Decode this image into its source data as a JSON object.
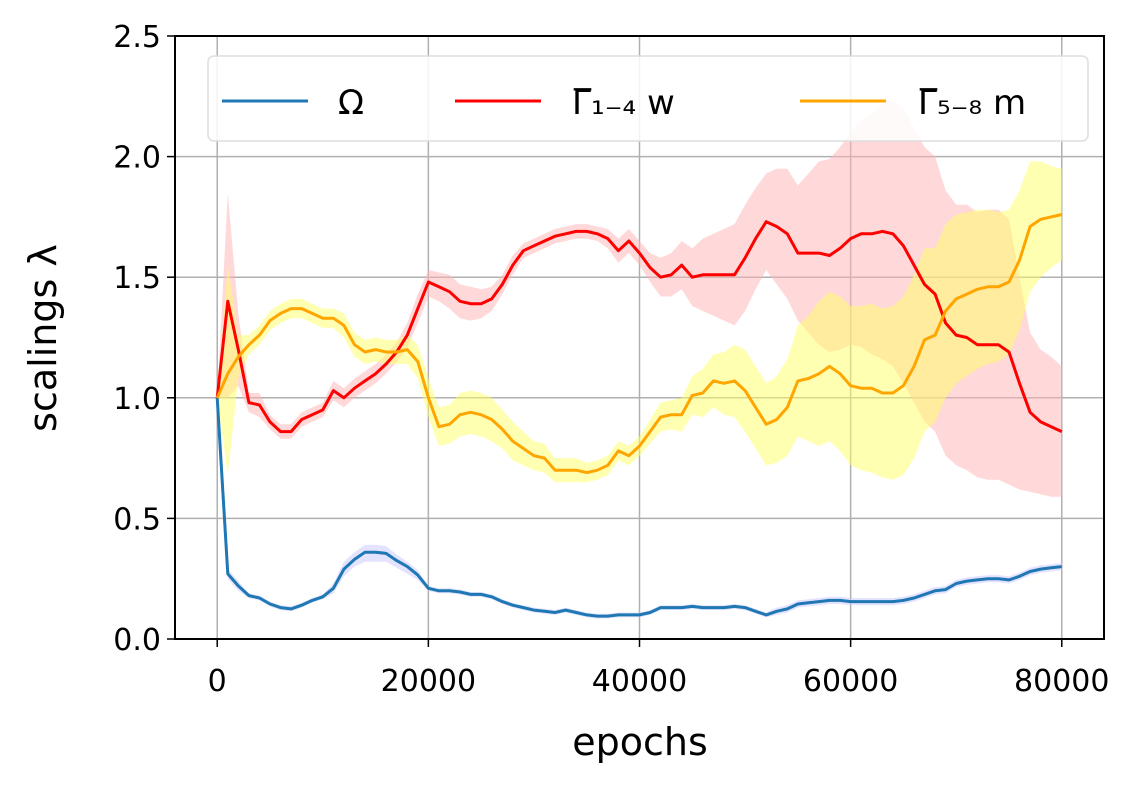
{
  "chart_data": {
    "type": "line",
    "xlabel": "epochs",
    "ylabel": "scalings λ",
    "xlim": [
      -4000,
      84000
    ],
    "ylim": [
      0,
      2.5
    ],
    "xticks": [
      0,
      20000,
      40000,
      60000,
      80000
    ],
    "xtick_labels": [
      "0",
      "20000",
      "40000",
      "60000",
      "80000"
    ],
    "yticks": [
      0,
      0.5,
      1,
      1.5,
      2,
      2.5
    ],
    "ytick_labels": [
      "0.0",
      "0.5",
      "1.0",
      "1.5",
      "2.0",
      "2.5"
    ],
    "grid": true,
    "legend_position": "top",
    "series": [
      {
        "name": "Ω",
        "color": "#1f77b4",
        "band_color": "#c8c8ff",
        "x": [
          0,
          1000,
          2000,
          3000,
          4000,
          5000,
          6000,
          7000,
          8000,
          9000,
          10000,
          11000,
          12000,
          13000,
          14000,
          15000,
          16000,
          17000,
          18000,
          19000,
          20000,
          21000,
          22000,
          23000,
          24000,
          25000,
          26000,
          27000,
          28000,
          29000,
          30000,
          31000,
          32000,
          33000,
          34000,
          35000,
          36000,
          37000,
          38000,
          39000,
          40000,
          41000,
          42000,
          43000,
          44000,
          45000,
          46000,
          47000,
          48000,
          49000,
          50000,
          51000,
          52000,
          53000,
          54000,
          55000,
          56000,
          57000,
          58000,
          59000,
          60000,
          61000,
          62000,
          63000,
          64000,
          65000,
          66000,
          67000,
          68000,
          69000,
          70000,
          71000,
          72000,
          73000,
          74000,
          75000,
          76000,
          77000,
          78000,
          79000,
          80000
        ],
        "y": [
          1.0,
          0.27,
          0.22,
          0.18,
          0.17,
          0.145,
          0.13,
          0.125,
          0.14,
          0.16,
          0.175,
          0.21,
          0.29,
          0.33,
          0.36,
          0.36,
          0.355,
          0.325,
          0.3,
          0.265,
          0.21,
          0.2,
          0.2,
          0.195,
          0.185,
          0.185,
          0.175,
          0.155,
          0.14,
          0.13,
          0.12,
          0.115,
          0.11,
          0.12,
          0.11,
          0.1,
          0.095,
          0.095,
          0.1,
          0.1,
          0.1,
          0.11,
          0.13,
          0.13,
          0.13,
          0.135,
          0.13,
          0.13,
          0.13,
          0.135,
          0.13,
          0.115,
          0.1,
          0.115,
          0.125,
          0.145,
          0.15,
          0.155,
          0.16,
          0.16,
          0.155,
          0.155,
          0.155,
          0.155,
          0.155,
          0.16,
          0.17,
          0.185,
          0.2,
          0.205,
          0.23,
          0.24,
          0.245,
          0.25,
          0.25,
          0.245,
          0.26,
          0.28,
          0.29,
          0.295,
          0.3
        ],
        "lower": [
          1.0,
          0.25,
          0.2,
          0.17,
          0.16,
          0.135,
          0.12,
          0.115,
          0.13,
          0.15,
          0.165,
          0.19,
          0.26,
          0.3,
          0.32,
          0.32,
          0.32,
          0.295,
          0.27,
          0.245,
          0.2,
          0.19,
          0.19,
          0.185,
          0.175,
          0.175,
          0.165,
          0.145,
          0.13,
          0.12,
          0.11,
          0.105,
          0.1,
          0.11,
          0.1,
          0.09,
          0.085,
          0.085,
          0.09,
          0.09,
          0.09,
          0.1,
          0.12,
          0.12,
          0.12,
          0.125,
          0.12,
          0.12,
          0.12,
          0.125,
          0.12,
          0.105,
          0.09,
          0.1,
          0.11,
          0.13,
          0.135,
          0.14,
          0.145,
          0.145,
          0.14,
          0.14,
          0.14,
          0.14,
          0.14,
          0.145,
          0.155,
          0.17,
          0.185,
          0.19,
          0.215,
          0.225,
          0.23,
          0.235,
          0.235,
          0.23,
          0.245,
          0.265,
          0.275,
          0.28,
          0.285
        ],
        "upper": [
          1.0,
          0.29,
          0.24,
          0.19,
          0.18,
          0.155,
          0.14,
          0.135,
          0.15,
          0.17,
          0.185,
          0.23,
          0.32,
          0.36,
          0.39,
          0.39,
          0.385,
          0.35,
          0.32,
          0.285,
          0.22,
          0.21,
          0.21,
          0.205,
          0.195,
          0.195,
          0.185,
          0.165,
          0.15,
          0.14,
          0.13,
          0.125,
          0.12,
          0.13,
          0.12,
          0.11,
          0.105,
          0.105,
          0.11,
          0.11,
          0.11,
          0.12,
          0.14,
          0.14,
          0.14,
          0.145,
          0.14,
          0.14,
          0.14,
          0.145,
          0.14,
          0.125,
          0.11,
          0.13,
          0.14,
          0.16,
          0.165,
          0.17,
          0.175,
          0.175,
          0.17,
          0.17,
          0.17,
          0.17,
          0.17,
          0.175,
          0.185,
          0.2,
          0.215,
          0.22,
          0.245,
          0.255,
          0.26,
          0.265,
          0.265,
          0.26,
          0.275,
          0.295,
          0.305,
          0.31,
          0.315
        ]
      },
      {
        "name": "Γ̅₁₋₄ w",
        "color": "#ff0000",
        "band_color": "#ffb3b3",
        "x": [
          0,
          1000,
          2000,
          3000,
          4000,
          5000,
          6000,
          7000,
          8000,
          9000,
          10000,
          11000,
          12000,
          13000,
          14000,
          15000,
          16000,
          17000,
          18000,
          19000,
          20000,
          21000,
          22000,
          23000,
          24000,
          25000,
          26000,
          27000,
          28000,
          29000,
          30000,
          31000,
          32000,
          33000,
          34000,
          35000,
          36000,
          37000,
          38000,
          39000,
          40000,
          41000,
          42000,
          43000,
          44000,
          45000,
          46000,
          47000,
          48000,
          49000,
          50000,
          51000,
          52000,
          53000,
          54000,
          55000,
          56000,
          57000,
          58000,
          59000,
          60000,
          61000,
          62000,
          63000,
          64000,
          65000,
          66000,
          67000,
          68000,
          69000,
          70000,
          71000,
          72000,
          73000,
          74000,
          75000,
          76000,
          77000,
          78000,
          79000,
          80000
        ],
        "y": [
          1.0,
          1.4,
          1.2,
          0.98,
          0.97,
          0.9,
          0.86,
          0.86,
          0.91,
          0.93,
          0.95,
          1.03,
          1.0,
          1.04,
          1.07,
          1.1,
          1.14,
          1.19,
          1.26,
          1.37,
          1.48,
          1.46,
          1.44,
          1.4,
          1.39,
          1.39,
          1.41,
          1.47,
          1.55,
          1.61,
          1.63,
          1.65,
          1.67,
          1.68,
          1.69,
          1.69,
          1.68,
          1.66,
          1.61,
          1.65,
          1.6,
          1.54,
          1.5,
          1.51,
          1.55,
          1.5,
          1.51,
          1.51,
          1.51,
          1.51,
          1.58,
          1.66,
          1.73,
          1.71,
          1.68,
          1.6,
          1.6,
          1.6,
          1.59,
          1.62,
          1.66,
          1.68,
          1.68,
          1.69,
          1.68,
          1.63,
          1.55,
          1.47,
          1.43,
          1.31,
          1.26,
          1.25,
          1.22,
          1.22,
          1.22,
          1.19,
          1.06,
          0.94,
          0.9,
          0.88,
          0.86
        ],
        "lower": [
          1.0,
          1.0,
          1.05,
          0.94,
          0.92,
          0.87,
          0.83,
          0.83,
          0.88,
          0.9,
          0.92,
          0.99,
          0.96,
          1.0,
          1.03,
          1.06,
          1.1,
          1.15,
          1.21,
          1.31,
          1.42,
          1.4,
          1.37,
          1.33,
          1.32,
          1.33,
          1.36,
          1.43,
          1.51,
          1.58,
          1.6,
          1.62,
          1.64,
          1.65,
          1.66,
          1.66,
          1.65,
          1.62,
          1.56,
          1.6,
          1.55,
          1.48,
          1.42,
          1.42,
          1.45,
          1.38,
          1.36,
          1.34,
          1.32,
          1.3,
          1.36,
          1.45,
          1.53,
          1.47,
          1.41,
          1.32,
          1.27,
          1.22,
          1.19,
          1.2,
          1.22,
          1.21,
          1.18,
          1.16,
          1.13,
          1.06,
          0.98,
          0.9,
          0.86,
          0.76,
          0.72,
          0.7,
          0.67,
          0.66,
          0.66,
          0.64,
          0.62,
          0.61,
          0.6,
          0.59,
          0.59
        ],
        "upper": [
          1.0,
          1.85,
          1.35,
          1.02,
          1.02,
          0.93,
          0.89,
          0.89,
          0.94,
          0.96,
          0.98,
          1.07,
          1.04,
          1.08,
          1.11,
          1.14,
          1.18,
          1.23,
          1.31,
          1.43,
          1.53,
          1.52,
          1.51,
          1.47,
          1.46,
          1.45,
          1.46,
          1.51,
          1.59,
          1.64,
          1.66,
          1.68,
          1.7,
          1.71,
          1.72,
          1.72,
          1.71,
          1.7,
          1.66,
          1.7,
          1.65,
          1.6,
          1.58,
          1.6,
          1.65,
          1.62,
          1.66,
          1.68,
          1.7,
          1.72,
          1.8,
          1.87,
          1.93,
          1.95,
          1.95,
          1.88,
          1.93,
          1.98,
          1.99,
          2.04,
          2.1,
          2.15,
          2.18,
          2.22,
          2.23,
          2.2,
          2.12,
          2.04,
          2.0,
          1.86,
          1.8,
          1.8,
          1.77,
          1.78,
          1.78,
          1.74,
          1.5,
          1.27,
          1.2,
          1.17,
          1.13
        ]
      },
      {
        "name": "Γ̅₅₋₈ m",
        "color": "#ffa500",
        "band_color": "#ffff66",
        "x": [
          0,
          1000,
          2000,
          3000,
          4000,
          5000,
          6000,
          7000,
          8000,
          9000,
          10000,
          11000,
          12000,
          13000,
          14000,
          15000,
          16000,
          17000,
          18000,
          19000,
          20000,
          21000,
          22000,
          23000,
          24000,
          25000,
          26000,
          27000,
          28000,
          29000,
          30000,
          31000,
          32000,
          33000,
          34000,
          35000,
          36000,
          37000,
          38000,
          39000,
          40000,
          41000,
          42000,
          43000,
          44000,
          45000,
          46000,
          47000,
          48000,
          49000,
          50000,
          51000,
          52000,
          53000,
          54000,
          55000,
          56000,
          57000,
          58000,
          59000,
          60000,
          61000,
          62000,
          63000,
          64000,
          65000,
          66000,
          67000,
          68000,
          69000,
          70000,
          71000,
          72000,
          73000,
          74000,
          75000,
          76000,
          77000,
          78000,
          79000,
          80000
        ],
        "y": [
          1.0,
          1.1,
          1.17,
          1.22,
          1.26,
          1.32,
          1.35,
          1.37,
          1.37,
          1.35,
          1.33,
          1.33,
          1.3,
          1.22,
          1.19,
          1.2,
          1.19,
          1.19,
          1.2,
          1.15,
          1.0,
          0.88,
          0.89,
          0.93,
          0.94,
          0.93,
          0.91,
          0.87,
          0.82,
          0.79,
          0.76,
          0.75,
          0.7,
          0.7,
          0.7,
          0.69,
          0.7,
          0.72,
          0.78,
          0.76,
          0.8,
          0.86,
          0.92,
          0.93,
          0.93,
          1.01,
          1.02,
          1.07,
          1.06,
          1.07,
          1.03,
          0.96,
          0.89,
          0.91,
          0.96,
          1.07,
          1.08,
          1.1,
          1.13,
          1.1,
          1.05,
          1.04,
          1.04,
          1.02,
          1.02,
          1.05,
          1.13,
          1.24,
          1.26,
          1.36,
          1.41,
          1.43,
          1.45,
          1.46,
          1.46,
          1.48,
          1.57,
          1.71,
          1.74,
          1.75,
          1.76
        ],
        "lower": [
          1.0,
          0.68,
          1.08,
          1.18,
          1.22,
          1.28,
          1.31,
          1.33,
          1.33,
          1.31,
          1.29,
          1.29,
          1.25,
          1.17,
          1.14,
          1.15,
          1.14,
          1.14,
          1.14,
          1.08,
          0.92,
          0.8,
          0.81,
          0.84,
          0.85,
          0.84,
          0.82,
          0.79,
          0.74,
          0.72,
          0.7,
          0.69,
          0.65,
          0.65,
          0.65,
          0.65,
          0.66,
          0.68,
          0.74,
          0.72,
          0.76,
          0.81,
          0.86,
          0.87,
          0.86,
          0.93,
          0.92,
          0.96,
          0.93,
          0.92,
          0.86,
          0.79,
          0.72,
          0.73,
          0.76,
          0.84,
          0.82,
          0.8,
          0.82,
          0.78,
          0.72,
          0.7,
          0.69,
          0.67,
          0.66,
          0.68,
          0.75,
          0.86,
          0.9,
          1.0,
          1.06,
          1.09,
          1.12,
          1.14,
          1.15,
          1.18,
          1.28,
          1.44,
          1.5,
          1.54,
          1.57
        ],
        "upper": [
          1.0,
          1.55,
          1.26,
          1.26,
          1.3,
          1.36,
          1.39,
          1.41,
          1.41,
          1.39,
          1.37,
          1.37,
          1.35,
          1.27,
          1.24,
          1.25,
          1.24,
          1.24,
          1.26,
          1.22,
          1.08,
          0.96,
          0.97,
          1.02,
          1.03,
          1.02,
          1.0,
          0.95,
          0.9,
          0.86,
          0.82,
          0.81,
          0.75,
          0.75,
          0.75,
          0.73,
          0.74,
          0.76,
          0.82,
          0.8,
          0.84,
          0.91,
          0.98,
          0.99,
          1.0,
          1.09,
          1.12,
          1.18,
          1.19,
          1.22,
          1.2,
          1.13,
          1.06,
          1.09,
          1.16,
          1.3,
          1.34,
          1.4,
          1.44,
          1.42,
          1.38,
          1.38,
          1.39,
          1.37,
          1.38,
          1.42,
          1.51,
          1.62,
          1.62,
          1.72,
          1.76,
          1.77,
          1.78,
          1.78,
          1.77,
          1.78,
          1.86,
          1.98,
          1.98,
          1.96,
          1.95
        ]
      }
    ]
  }
}
